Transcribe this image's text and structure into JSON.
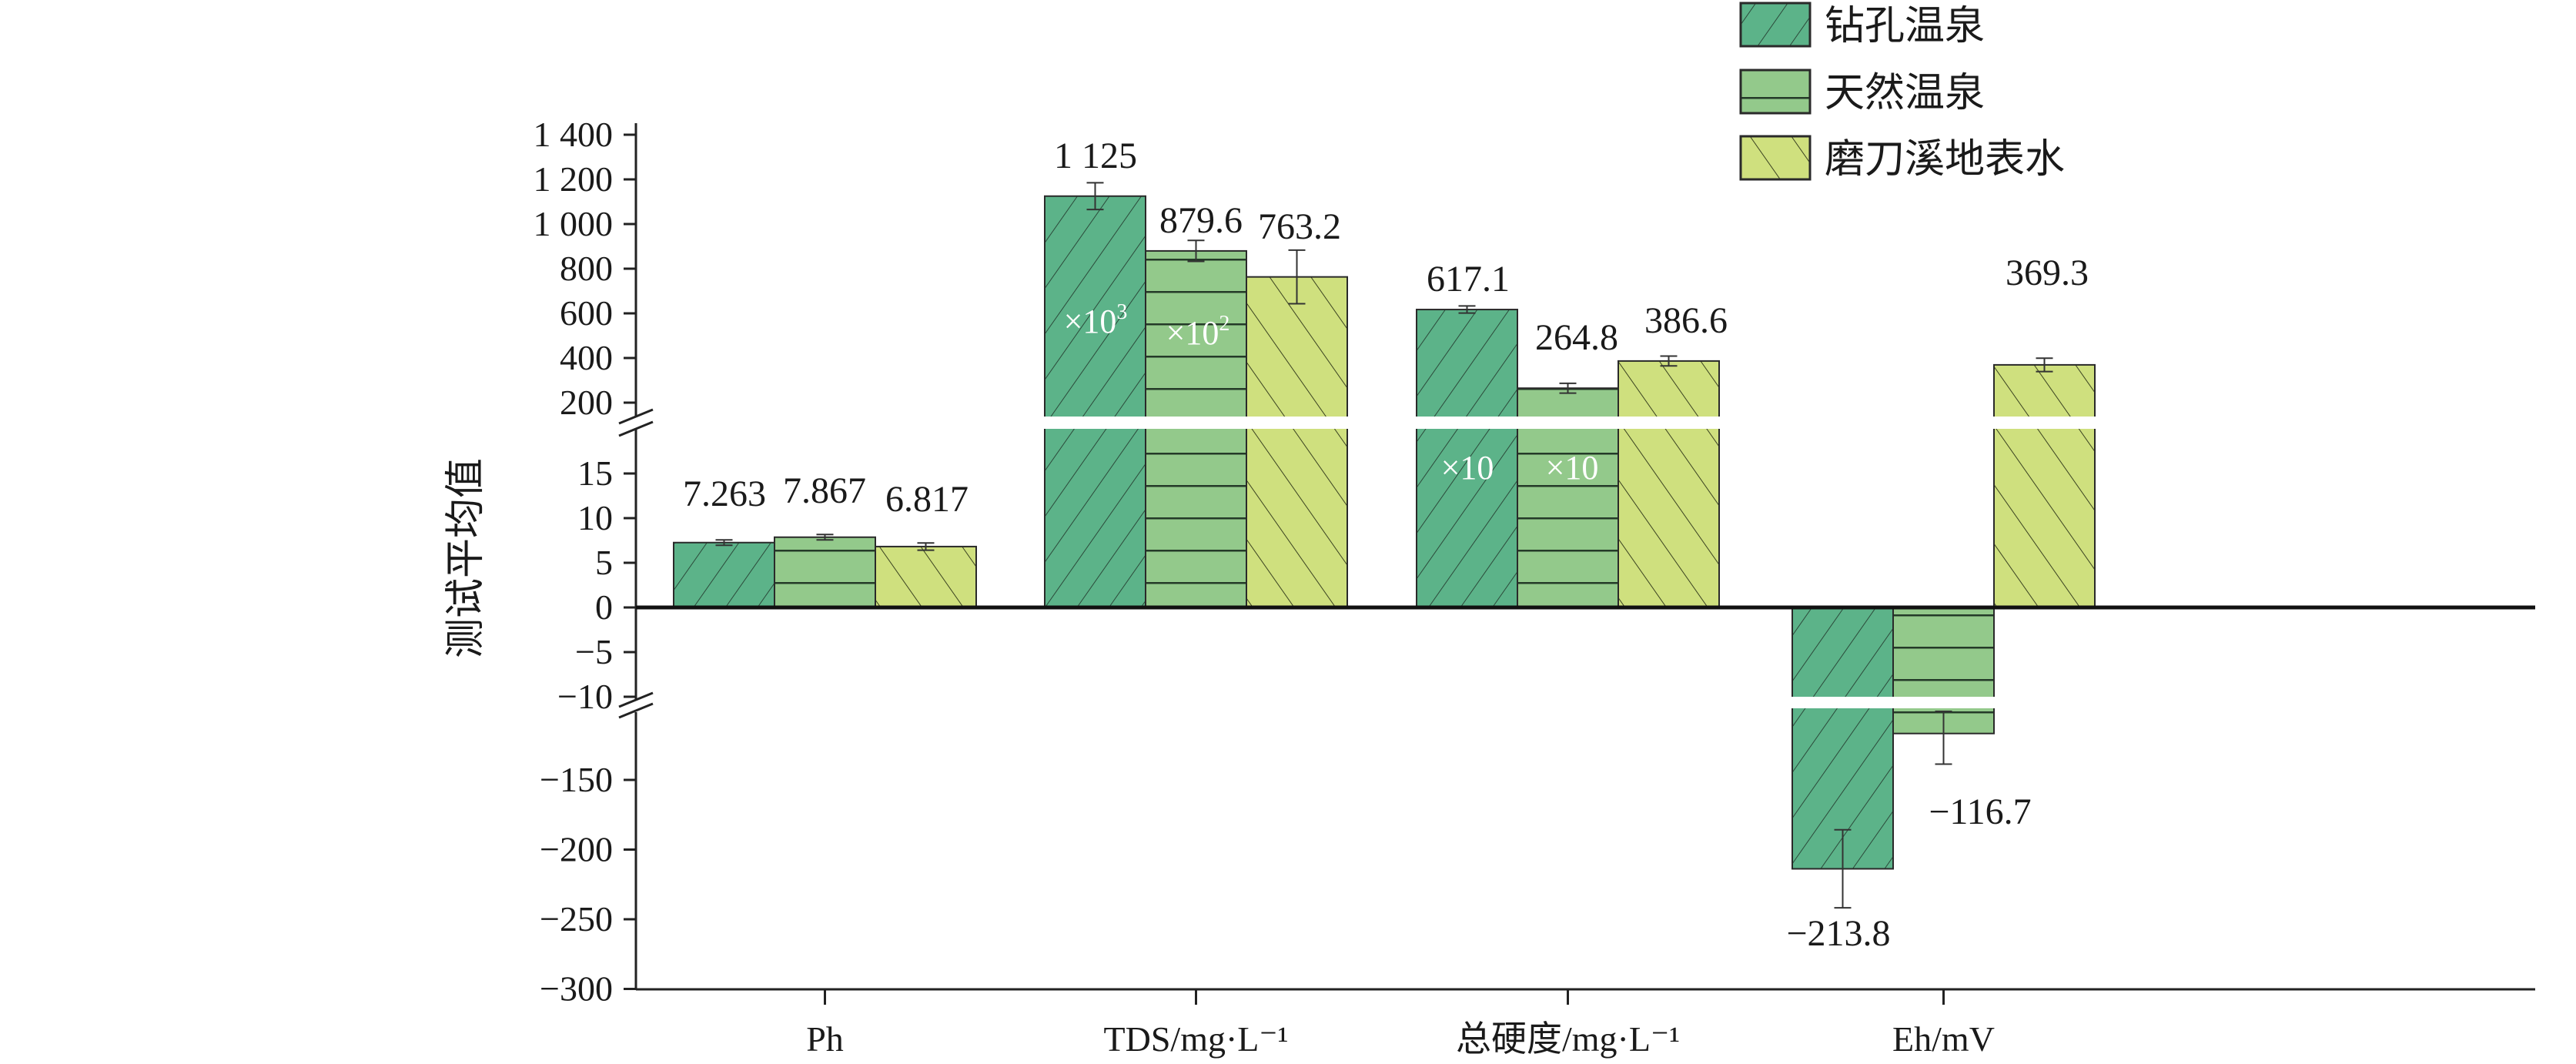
{
  "chart_data": {
    "type": "bar",
    "title": "",
    "xlabel": "",
    "ylabel": "测试平均值",
    "categories": [
      "Ph",
      "TDS/mg·L⁻¹",
      "总硬度/mg·L⁻¹",
      "Eh/mV"
    ],
    "legend_position": "top-right",
    "grid": false,
    "axis_break": true,
    "y_segments": [
      {
        "range": [
          200,
          1400
        ],
        "ticks": [
          1400,
          1200,
          1000,
          800,
          600,
          400,
          200
        ],
        "tick_labels": [
          "1 400",
          "1 200",
          "1 000",
          "800",
          "600",
          "400",
          "200"
        ]
      },
      {
        "range": [
          -10,
          15
        ],
        "ticks": [
          15,
          10,
          5,
          0,
          -5,
          -10
        ],
        "tick_labels": [
          "15",
          "10",
          "5",
          "0",
          "−5",
          "−10"
        ]
      },
      {
        "range": [
          -300,
          -150
        ],
        "ticks": [
          -150,
          -200,
          -250,
          -300
        ],
        "tick_labels": [
          "−150",
          "−200",
          "−250",
          "−300"
        ]
      }
    ],
    "series": [
      {
        "name": "钻孔温泉",
        "color": "#5cb389",
        "hatch": "diagonal-forward",
        "values": [
          7.263,
          1125,
          617.1,
          -213.8
        ],
        "errors": [
          0.3,
          60,
          16,
          28
        ],
        "value_labels": [
          "7.263",
          "1 125",
          "617.1",
          "−213.8"
        ],
        "multipliers": [
          "",
          "×10",
          "×10",
          ""
        ],
        "multiplier_sup": [
          "",
          "3",
          "",
          ""
        ]
      },
      {
        "name": "天然温泉",
        "color": "#93c98b",
        "hatch": "horizontal",
        "values": [
          7.867,
          879.6,
          264.8,
          -116.7
        ],
        "errors": [
          0.3,
          47,
          22,
          22
        ],
        "value_labels": [
          "7.867",
          "879.6",
          "264.8",
          "−116.7"
        ],
        "multipliers": [
          "",
          "×10",
          "×10",
          ""
        ],
        "multiplier_sup": [
          "",
          "2",
          "",
          ""
        ]
      },
      {
        "name": "磨刀溪地表水",
        "color": "#cfe07e",
        "hatch": "diagonal-back",
        "values": [
          6.817,
          763.2,
          386.6,
          369.3
        ],
        "errors": [
          0.4,
          120,
          22,
          30
        ],
        "value_labels": [
          "6.817",
          "763.2",
          "386.6",
          "369.3"
        ],
        "multipliers": [
          "",
          "",
          "",
          ""
        ],
        "multiplier_sup": [
          "",
          "",
          "",
          ""
        ]
      }
    ]
  }
}
